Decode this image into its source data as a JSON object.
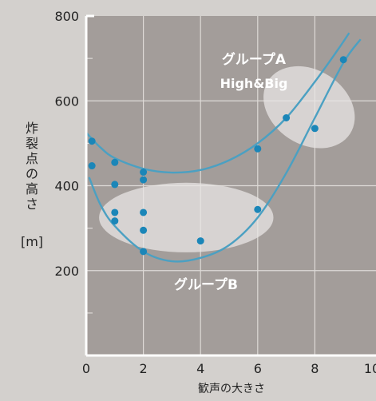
{
  "chart_data": {
    "type": "scatter",
    "xlabel": "歓声の大きさ",
    "ylabel_chars": [
      "炸",
      "裂",
      "点",
      "の",
      "高",
      "さ"
    ],
    "ylabel_unit": "[m]",
    "xlim": [
      0,
      10
    ],
    "ylim": [
      0,
      800
    ],
    "x_ticks": [
      "0",
      "2",
      "4",
      "6",
      "8",
      "10"
    ],
    "y_ticks": [
      "200",
      "400",
      "600",
      "800"
    ],
    "grid": true,
    "points": [
      {
        "x": 0.2,
        "y": 505
      },
      {
        "x": 0.2,
        "y": 447
      },
      {
        "x": 1.0,
        "y": 455
      },
      {
        "x": 1.0,
        "y": 403
      },
      {
        "x": 1.0,
        "y": 337
      },
      {
        "x": 1.0,
        "y": 317
      },
      {
        "x": 2.0,
        "y": 432
      },
      {
        "x": 2.0,
        "y": 414
      },
      {
        "x": 2.0,
        "y": 337
      },
      {
        "x": 2.0,
        "y": 295
      },
      {
        "x": 2.0,
        "y": 245
      },
      {
        "x": 4.0,
        "y": 270
      },
      {
        "x": 6.0,
        "y": 487
      },
      {
        "x": 6.0,
        "y": 344
      },
      {
        "x": 7.0,
        "y": 560
      },
      {
        "x": 8.0,
        "y": 535
      },
      {
        "x": 9.0,
        "y": 697
      }
    ],
    "groups": [
      {
        "title": "グループA",
        "subtitle": "High&Big",
        "center": [
          7.8,
          585
        ],
        "radii": [
          1.3,
          115
        ],
        "rotate": -57
      },
      {
        "title": "グループB",
        "subtitle": "",
        "center": [
          3.5,
          325
        ],
        "radii": [
          3.05,
          82
        ],
        "rotate": 0
      }
    ],
    "curves": [
      [
        [
          0.0,
          525
        ],
        [
          0.5,
          490
        ],
        [
          1.0,
          465
        ],
        [
          2.0,
          440
        ],
        [
          3.0,
          431
        ],
        [
          4.0,
          437
        ],
        [
          5.0,
          460
        ],
        [
          6.0,
          500
        ],
        [
          7.0,
          560
        ],
        [
          8.0,
          645
        ],
        [
          8.8,
          720
        ],
        [
          9.2,
          760
        ]
      ],
      [
        [
          0.1,
          420
        ],
        [
          0.5,
          355
        ],
        [
          1.0,
          305
        ],
        [
          2.0,
          245
        ],
        [
          3.0,
          222
        ],
        [
          4.0,
          230
        ],
        [
          5.0,
          260
        ],
        [
          6.0,
          325
        ],
        [
          7.0,
          430
        ],
        [
          8.0,
          560
        ],
        [
          9.0,
          690
        ],
        [
          9.6,
          745
        ]
      ]
    ],
    "colors": {
      "background": "#d3d0cd",
      "plot": "#a39d9a",
      "grid": "#dedad7",
      "axis": "#ffffff",
      "point": "#1b86b8",
      "curve": "#4ba0c2",
      "ellipse": "#e8e6e4",
      "label": "#ffffff",
      "text": "#222222"
    }
  }
}
